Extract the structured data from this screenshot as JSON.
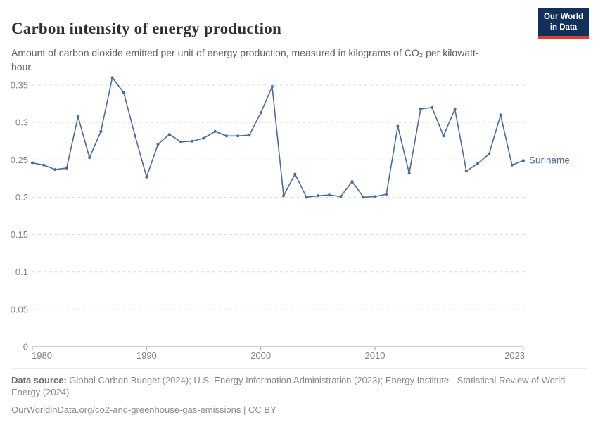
{
  "header": {
    "title": "Carbon intensity of energy production",
    "subtitle": "Amount of carbon dioxide emitted per unit of energy production, measured in kilograms of CO₂ per kilowatt-hour.",
    "logo": {
      "line1": "Our World",
      "line2": "in Data",
      "bg_color": "#123059",
      "stripe_color": "#dc3e32"
    }
  },
  "chart_data": {
    "type": "line",
    "title": "Carbon intensity of energy production",
    "entity_label": "Suriname",
    "line_color": "#4c6a9c",
    "grid": true,
    "legend_position": "right-of-line-end",
    "xlabel": "",
    "ylabel": "",
    "xlim": [
      1980,
      2023
    ],
    "ylim": [
      0,
      0.35
    ],
    "xticks": [
      1980,
      1990,
      2000,
      2010,
      2023
    ],
    "xtick_labels": [
      "1980",
      "1990",
      "2000",
      "2010",
      "2023"
    ],
    "yticks": [
      0,
      0.05,
      0.1,
      0.15,
      0.2,
      0.25,
      0.3,
      0.35
    ],
    "ytick_labels": [
      "0",
      "0.05",
      "0.1",
      "0.15",
      "0.2",
      "0.25",
      "0.3",
      "0.35"
    ],
    "x": [
      1980,
      1981,
      1982,
      1983,
      1984,
      1985,
      1986,
      1987,
      1988,
      1989,
      1990,
      1991,
      1992,
      1993,
      1994,
      1995,
      1996,
      1997,
      1998,
      1999,
      2000,
      2001,
      2002,
      2003,
      2004,
      2005,
      2006,
      2007,
      2008,
      2009,
      2010,
      2011,
      2012,
      2013,
      2014,
      2015,
      2016,
      2017,
      2018,
      2019,
      2020,
      2021,
      2022,
      2023
    ],
    "series": [
      {
        "name": "Suriname",
        "values": [
          0.246,
          0.243,
          0.237,
          0.239,
          0.308,
          0.253,
          0.288,
          0.36,
          0.34,
          0.282,
          0.227,
          0.271,
          0.284,
          0.274,
          0.275,
          0.279,
          0.288,
          0.282,
          0.282,
          0.283,
          0.313,
          0.348,
          0.202,
          0.231,
          0.2,
          0.202,
          0.203,
          0.201,
          0.221,
          0.2,
          0.201,
          0.204,
          0.295,
          0.232,
          0.318,
          0.32,
          0.282,
          0.318,
          0.235,
          0.245,
          0.258,
          0.31,
          0.243,
          0.249
        ]
      }
    ]
  },
  "footer": {
    "source_label": "Data source:",
    "source_text": " Global Carbon Budget (2024); U.S. Energy Information Administration (2023); Energy Institute - Statistical Review of World Energy (2024)",
    "permalink": "OurWorldinData.org/co2-and-greenhouse-gas-emissions | CC BY"
  }
}
